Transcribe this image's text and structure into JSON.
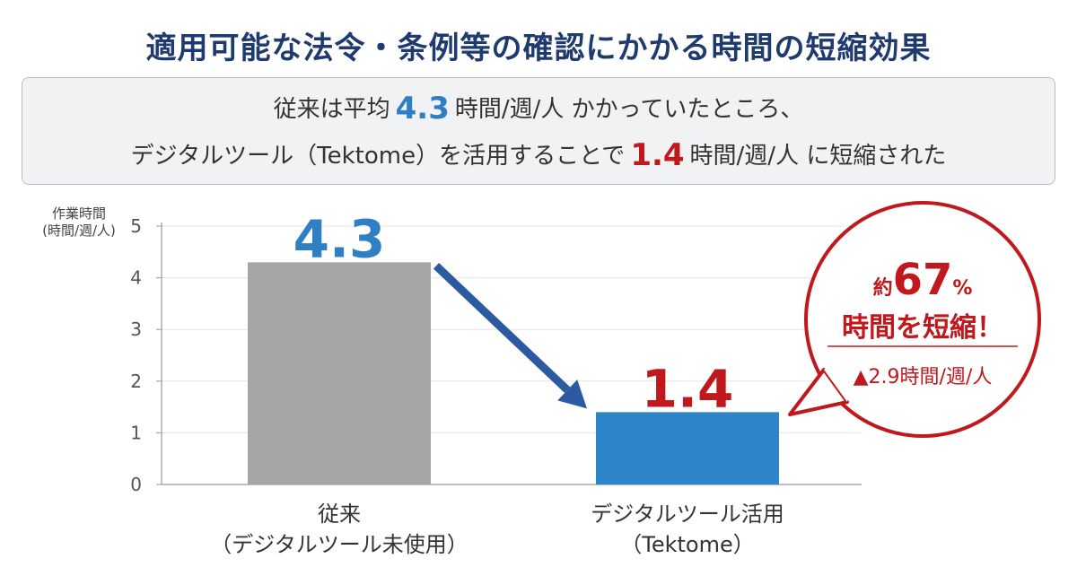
{
  "title": "適用可能な法令・条例等の確認にかかる時間の短縮効果",
  "summary": {
    "line1_a": "従来は平均",
    "line1_num": "4.3",
    "line1_b": "時間/週/人 かかっていたところ、",
    "line2_a": "デジタルツール（Tektome）を活用することで",
    "line2_num": "1.4",
    "line2_b": "時間/週/人 に短縮された"
  },
  "callout": {
    "prefix": "約",
    "percent": "67",
    "percent_sign": "%",
    "main": "時間を短縮！",
    "sub": "▲2.9時間/週/人"
  },
  "colors": {
    "title": "#1f3a6e",
    "bar_conventional": "#a6a6a8",
    "bar_tektome": "#2e86c9",
    "value_blue": "#2f7fc4",
    "value_red": "#c0181c",
    "arrow": "#2c5aa0",
    "callout_border": "#c0181c"
  },
  "chart_data": {
    "type": "bar",
    "ylabel_line1": "作業時間",
    "ylabel_line2": "(時間/週/人)",
    "ylim": [
      0,
      5
    ],
    "yticks": [
      0,
      1,
      2,
      3,
      4,
      5
    ],
    "grid": true,
    "categories": [
      {
        "line1": "従来",
        "line2": "（デジタルツール未使用）"
      },
      {
        "line1": "デジタルツール活用",
        "line2": "（Tektome）"
      }
    ],
    "values": [
      4.3,
      1.4
    ],
    "value_labels": [
      "4.3",
      "1.4"
    ]
  }
}
